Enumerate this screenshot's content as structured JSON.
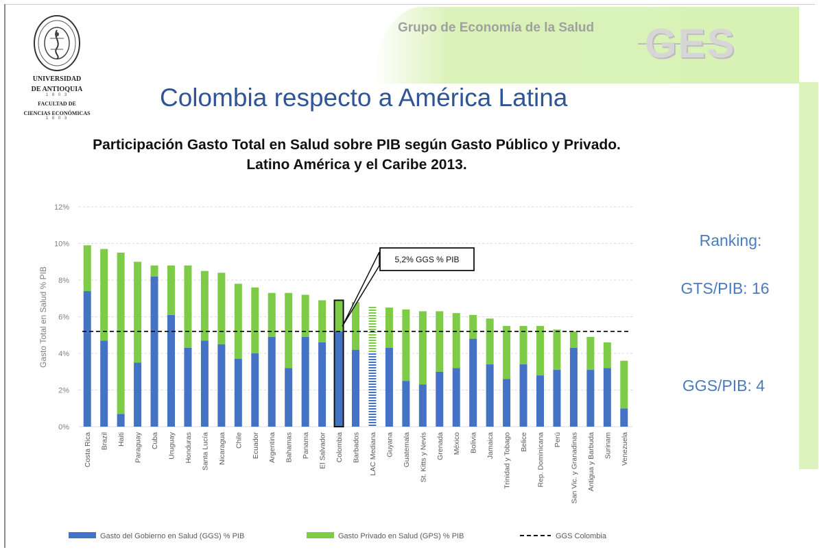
{
  "header": {
    "group_name": "Grupo de Economía de la Salud",
    "logo_text": "GES",
    "university": {
      "line1": "UNIVERSIDAD",
      "line2": "DE ANTIOQUIA",
      "line3": "FACULTAD DE",
      "line4": "CIENCIAS ECONÓMICAS",
      "dots": "1 8 0 3"
    }
  },
  "slide_title": "Colombia respecto a América Latina",
  "ranking": {
    "label": "Ranking:",
    "gts": "GTS/PIB: 16",
    "ggs": "GGS/PIB: 4"
  },
  "colors": {
    "public": "#4472c4",
    "private": "#7ecb47",
    "accent_text": "#4a7bbf",
    "title_blue": "#2f5597"
  },
  "chart_data": {
    "type": "bar",
    "stacked": true,
    "title": "Participación Gasto Total en Salud sobre PIB según Gasto Público y Privado. Latino América y el Caribe 2013.",
    "ylabel": "Gasto Total en Salud % PIB",
    "ylim": [
      0,
      12
    ],
    "yticks": [
      "0%",
      "2%",
      "4%",
      "6%",
      "8%",
      "10%",
      "12%"
    ],
    "grid": true,
    "legend_position": "bottom",
    "categories": [
      "Costa Rica",
      "Brazil",
      "Haiti",
      "Paraguay",
      "Cuba",
      "Uruguay",
      "Honduras",
      "Santa Lucía",
      "Nicaragua",
      "Chile",
      "Ecuador",
      "Argentina",
      "Bahamas",
      "Panama",
      "El Salvador",
      "Colombia",
      "Barbados",
      "LAC Mediana",
      "Guyana",
      "Guatemala",
      "St. Kitts y Nevis",
      "Grenada",
      "México",
      "Bolivia",
      "Jamaica",
      "Trinidad y Tobago",
      "Belice",
      "Rep. Dominicana",
      "Perú",
      "San Vic. y Granadinas",
      "Antigua y Barbuda",
      "Surinam",
      "Venezuela"
    ],
    "series": [
      {
        "name": "Gasto del Gobierno en Salud (GGS) % PIB",
        "values": [
          7.4,
          4.7,
          0.7,
          3.5,
          8.2,
          6.1,
          4.3,
          4.7,
          4.5,
          3.7,
          4.0,
          4.9,
          3.2,
          4.9,
          4.6,
          5.2,
          4.2,
          4.0,
          4.3,
          2.5,
          2.3,
          3.0,
          3.2,
          4.8,
          3.4,
          2.6,
          3.4,
          2.8,
          3.1,
          4.3,
          3.1,
          3.2,
          1.0
        ]
      },
      {
        "name": "Gasto Privado en Salud (GPS) % PIB",
        "values": [
          2.5,
          5.0,
          8.8,
          5.5,
          0.6,
          2.7,
          4.5,
          3.8,
          3.9,
          4.1,
          3.6,
          2.4,
          4.1,
          2.3,
          2.3,
          1.7,
          2.6,
          2.6,
          2.2,
          3.9,
          4.0,
          3.3,
          3.0,
          1.3,
          2.5,
          2.9,
          2.1,
          2.7,
          2.2,
          0.9,
          1.8,
          1.4,
          2.6
        ]
      }
    ],
    "reference_line": {
      "name": "GGS Colombia",
      "value": 5.2
    },
    "highlight_category": "Colombia",
    "hatched_category": "LAC Mediana",
    "annotation": "5,2% GGS % PIB"
  }
}
